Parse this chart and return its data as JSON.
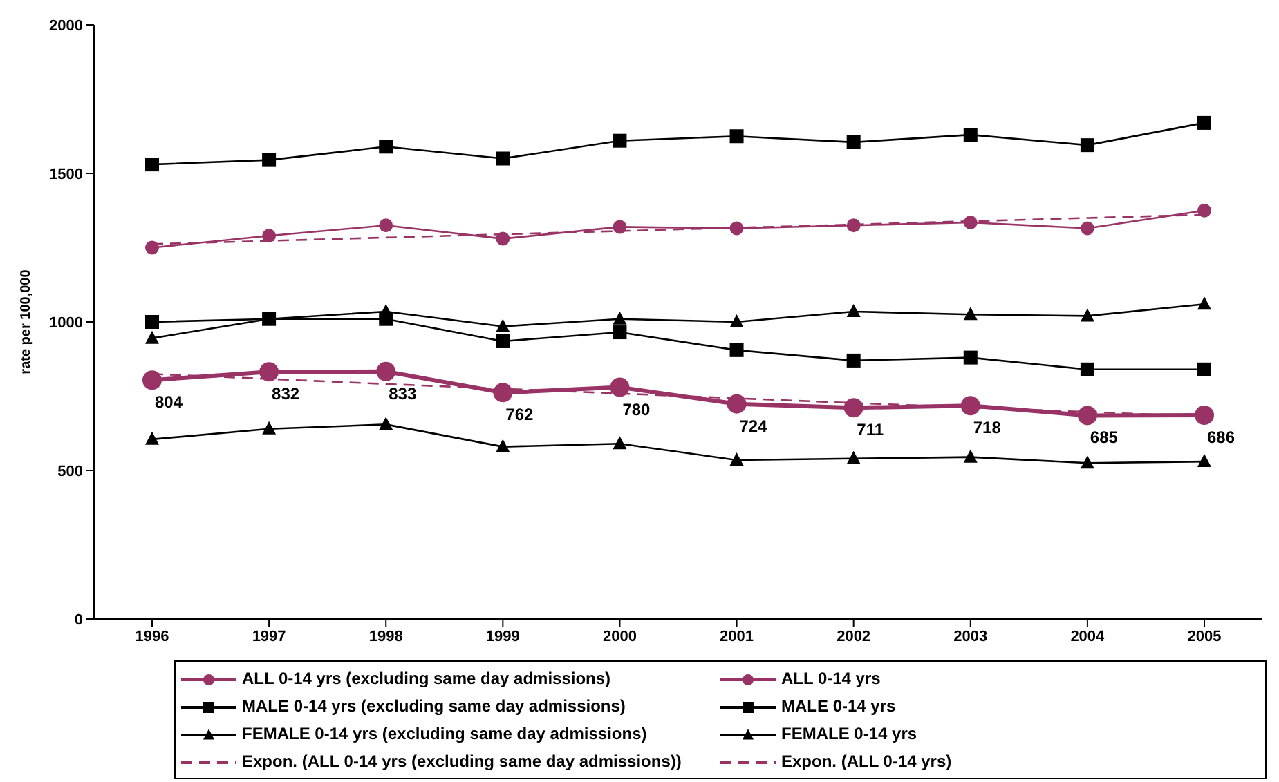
{
  "chart_data": {
    "type": "line",
    "ylabel": "rate per 100,000",
    "categories": [
      "1996",
      "1997",
      "1998",
      "1999",
      "2000",
      "2001",
      "2002",
      "2003",
      "2004",
      "2005"
    ],
    "ylim": [
      0,
      2000
    ],
    "yticks": [
      0,
      500,
      1000,
      1500,
      2000
    ],
    "grid": false,
    "legend": "bottom",
    "series": [
      {
        "name": "ALL 0-14 yrs (excluding same day admissions)",
        "color": "#993366",
        "marker": "circle",
        "line_style": "solid",
        "values": [
          804,
          832,
          833,
          762,
          780,
          724,
          711,
          718,
          685,
          686
        ],
        "value_labels": [
          "804",
          "832",
          "833",
          "762",
          "780",
          "724",
          "711",
          "718",
          "685",
          "686"
        ]
      },
      {
        "name": "ALL 0-14 yrs",
        "color": "#993366",
        "marker": "circle",
        "line_style": "solid",
        "values": [
          1250,
          1290,
          1325,
          1280,
          1320,
          1315,
          1325,
          1335,
          1315,
          1375
        ]
      },
      {
        "name": "MALE 0-14 yrs (excluding same day admissions)",
        "color": "#000000",
        "marker": "square",
        "line_style": "solid",
        "values": [
          1000,
          1010,
          1010,
          935,
          965,
          905,
          870,
          880,
          840,
          840
        ]
      },
      {
        "name": "MALE 0-14 yrs",
        "color": "#000000",
        "marker": "square",
        "line_style": "solid",
        "values": [
          1530,
          1545,
          1590,
          1550,
          1610,
          1625,
          1605,
          1630,
          1595,
          1670
        ]
      },
      {
        "name": "FEMALE 0-14 yrs (excluding same day admissions)",
        "color": "#000000",
        "marker": "triangle",
        "line_style": "solid",
        "values": [
          605,
          640,
          655,
          580,
          590,
          535,
          540,
          545,
          525,
          530
        ]
      },
      {
        "name": "FEMALE 0-14 yrs",
        "color": "#000000",
        "marker": "triangle",
        "line_style": "solid",
        "values": [
          945,
          1010,
          1035,
          985,
          1010,
          1000,
          1035,
          1025,
          1020,
          1060
        ]
      },
      {
        "name": "Expon. (ALL 0-14 yrs (excluding same day admissions))",
        "color": "#993366",
        "marker": "none",
        "line_style": "dashed",
        "values": [
          825,
          808,
          791,
          775,
          759,
          743,
          727,
          712,
          697,
          682
        ]
      },
      {
        "name": "Expon. (ALL 0-14 yrs)",
        "color": "#993366",
        "marker": "none",
        "line_style": "dashed",
        "values": [
          1262,
          1273,
          1284,
          1295,
          1306,
          1317,
          1328,
          1339,
          1350,
          1361
        ]
      }
    ]
  }
}
